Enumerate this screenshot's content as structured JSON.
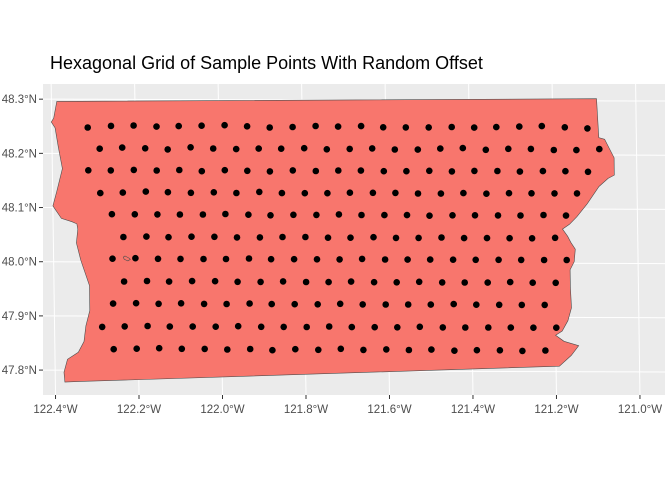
{
  "chart_data": {
    "type": "scatter",
    "title": "Hexagonal Grid of Sample Points With Random Offset",
    "xlabel": "",
    "ylabel": "",
    "x_ticks": [
      {
        "value": -122.4,
        "label": "122.4°W"
      },
      {
        "value": -122.2,
        "label": "122.2°W"
      },
      {
        "value": -122.0,
        "label": "122.0°W"
      },
      {
        "value": -121.8,
        "label": "121.8°W"
      },
      {
        "value": -121.6,
        "label": "121.6°W"
      },
      {
        "value": -121.4,
        "label": "121.4°W"
      },
      {
        "value": -121.2,
        "label": "121.2°W"
      },
      {
        "value": -121.0,
        "label": "121.0°W"
      }
    ],
    "y_ticks": [
      {
        "value": 47.8,
        "label": "47.8°N"
      },
      {
        "value": 47.9,
        "label": "47.9°N"
      },
      {
        "value": 48.0,
        "label": "48.0°N"
      },
      {
        "value": 48.1,
        "label": "48.1°N"
      },
      {
        "value": 48.2,
        "label": "48.2°N"
      },
      {
        "value": 48.3,
        "label": "48.3°N"
      }
    ],
    "xlim": [
      -122.43,
      -120.94
    ],
    "ylim": [
      47.754,
      48.328
    ],
    "grid": true,
    "legend": "none",
    "region_fill": "#F8766D",
    "region_stroke": "#4d4d4d",
    "panel_background": "#EBEBEB",
    "grid_color": "#ffffff",
    "point_color": "#000000",
    "region_outline": [
      [
        -122.387,
        48.296
      ],
      [
        -121.094,
        48.304
      ],
      [
        -121.09,
        48.232
      ],
      [
        -121.076,
        48.229
      ],
      [
        -121.054,
        48.195
      ],
      [
        -121.054,
        48.163
      ],
      [
        -121.069,
        48.157
      ],
      [
        -121.091,
        48.142
      ],
      [
        -121.12,
        48.11
      ],
      [
        -121.145,
        48.086
      ],
      [
        -121.163,
        48.072
      ],
      [
        -121.18,
        48.063
      ],
      [
        -121.168,
        48.05
      ],
      [
        -121.16,
        48.038
      ],
      [
        -121.15,
        48.026
      ],
      [
        -121.153,
        48.003
      ],
      [
        -121.163,
        47.988
      ],
      [
        -121.163,
        47.955
      ],
      [
        -121.161,
        47.918
      ],
      [
        -121.17,
        47.894
      ],
      [
        -121.184,
        47.875
      ],
      [
        -121.2,
        47.867
      ],
      [
        -121.18,
        47.856
      ],
      [
        -121.145,
        47.848
      ],
      [
        -121.163,
        47.83
      ],
      [
        -121.192,
        47.81
      ],
      [
        -122.349,
        47.779
      ],
      [
        -122.377,
        47.778
      ],
      [
        -122.379,
        47.796
      ],
      [
        -122.37,
        47.82
      ],
      [
        -122.344,
        47.833
      ],
      [
        -122.33,
        47.853
      ],
      [
        -122.325,
        47.882
      ],
      [
        -122.315,
        47.91
      ],
      [
        -122.315,
        47.956
      ],
      [
        -122.335,
        48.003
      ],
      [
        -122.345,
        48.035
      ],
      [
        -122.341,
        48.06
      ],
      [
        -122.343,
        48.07
      ],
      [
        -122.355,
        48.074
      ],
      [
        -122.38,
        48.08
      ],
      [
        -122.4,
        48.103
      ],
      [
        -122.39,
        48.13
      ],
      [
        -122.376,
        48.172
      ],
      [
        -122.385,
        48.212
      ],
      [
        -122.392,
        48.247
      ],
      [
        -122.401,
        48.258
      ],
      [
        -122.395,
        48.265
      ],
      [
        -122.387,
        48.296
      ]
    ],
    "islet_outline": [
      [
        -122.229,
        48.011
      ],
      [
        -122.219,
        48.007
      ],
      [
        -122.216,
        48.005
      ],
      [
        -122.222,
        48.002
      ],
      [
        -122.231,
        48.005
      ],
      [
        -122.233,
        48.009
      ],
      [
        -122.229,
        48.011
      ]
    ],
    "points": [
      {
        "x": -122.314,
        "y": 48.248
      },
      {
        "x": -122.258,
        "y": 48.251
      },
      {
        "x": -122.204,
        "y": 48.252
      },
      {
        "x": -122.149,
        "y": 48.25
      },
      {
        "x": -122.096,
        "y": 48.251
      },
      {
        "x": -122.041,
        "y": 48.252
      },
      {
        "x": -121.986,
        "y": 48.253
      },
      {
        "x": -121.932,
        "y": 48.251
      },
      {
        "x": -121.878,
        "y": 48.249
      },
      {
        "x": -121.823,
        "y": 48.25
      },
      {
        "x": -121.768,
        "y": 48.252
      },
      {
        "x": -121.714,
        "y": 48.251
      },
      {
        "x": -121.659,
        "y": 48.252
      },
      {
        "x": -121.606,
        "y": 48.25
      },
      {
        "x": -121.552,
        "y": 48.25
      },
      {
        "x": -121.497,
        "y": 48.25
      },
      {
        "x": -121.442,
        "y": 48.251
      },
      {
        "x": -121.388,
        "y": 48.25
      },
      {
        "x": -121.335,
        "y": 48.251
      },
      {
        "x": -121.28,
        "y": 48.252
      },
      {
        "x": -121.226,
        "y": 48.253
      },
      {
        "x": -121.171,
        "y": 48.251
      },
      {
        "x": -121.117,
        "y": 48.249
      },
      {
        "x": -122.286,
        "y": 48.209
      },
      {
        "x": -122.232,
        "y": 48.211
      },
      {
        "x": -122.177,
        "y": 48.21
      },
      {
        "x": -122.123,
        "y": 48.208
      },
      {
        "x": -122.068,
        "y": 48.212
      },
      {
        "x": -122.014,
        "y": 48.21
      },
      {
        "x": -121.959,
        "y": 48.209
      },
      {
        "x": -121.905,
        "y": 48.21
      },
      {
        "x": -121.851,
        "y": 48.21
      },
      {
        "x": -121.796,
        "y": 48.211
      },
      {
        "x": -121.742,
        "y": 48.209
      },
      {
        "x": -121.687,
        "y": 48.21
      },
      {
        "x": -121.633,
        "y": 48.211
      },
      {
        "x": -121.579,
        "y": 48.209
      },
      {
        "x": -121.524,
        "y": 48.209
      },
      {
        "x": -121.47,
        "y": 48.211
      },
      {
        "x": -121.416,
        "y": 48.212
      },
      {
        "x": -121.361,
        "y": 48.209
      },
      {
        "x": -121.307,
        "y": 48.211
      },
      {
        "x": -121.253,
        "y": 48.211
      },
      {
        "x": -121.198,
        "y": 48.209
      },
      {
        "x": -121.144,
        "y": 48.209
      },
      {
        "x": -121.089,
        "y": 48.211
      },
      {
        "x": -122.314,
        "y": 48.169
      },
      {
        "x": -122.26,
        "y": 48.169
      },
      {
        "x": -122.205,
        "y": 48.17
      },
      {
        "x": -122.15,
        "y": 48.169
      },
      {
        "x": -122.096,
        "y": 48.17
      },
      {
        "x": -122.042,
        "y": 48.168
      },
      {
        "x": -121.987,
        "y": 48.17
      },
      {
        "x": -121.933,
        "y": 48.169
      },
      {
        "x": -121.879,
        "y": 48.168
      },
      {
        "x": -121.824,
        "y": 48.17
      },
      {
        "x": -121.769,
        "y": 48.169
      },
      {
        "x": -121.715,
        "y": 48.17
      },
      {
        "x": -121.661,
        "y": 48.17
      },
      {
        "x": -121.606,
        "y": 48.169
      },
      {
        "x": -121.552,
        "y": 48.169
      },
      {
        "x": -121.497,
        "y": 48.17
      },
      {
        "x": -121.443,
        "y": 48.169
      },
      {
        "x": -121.389,
        "y": 48.17
      },
      {
        "x": -121.334,
        "y": 48.17
      },
      {
        "x": -121.28,
        "y": 48.169
      },
      {
        "x": -121.225,
        "y": 48.17
      },
      {
        "x": -121.171,
        "y": 48.17
      },
      {
        "x": -121.117,
        "y": 48.169
      },
      {
        "x": -122.286,
        "y": 48.127
      },
      {
        "x": -122.232,
        "y": 48.128
      },
      {
        "x": -122.177,
        "y": 48.13
      },
      {
        "x": -122.124,
        "y": 48.129
      },
      {
        "x": -122.069,
        "y": 48.128
      },
      {
        "x": -122.014,
        "y": 48.129
      },
      {
        "x": -121.96,
        "y": 48.128
      },
      {
        "x": -121.905,
        "y": 48.13
      },
      {
        "x": -121.851,
        "y": 48.128
      },
      {
        "x": -121.796,
        "y": 48.128
      },
      {
        "x": -121.742,
        "y": 48.128
      },
      {
        "x": -121.688,
        "y": 48.129
      },
      {
        "x": -121.633,
        "y": 48.129
      },
      {
        "x": -121.579,
        "y": 48.129
      },
      {
        "x": -121.525,
        "y": 48.128
      },
      {
        "x": -121.47,
        "y": 48.128
      },
      {
        "x": -121.416,
        "y": 48.129
      },
      {
        "x": -121.361,
        "y": 48.128
      },
      {
        "x": -121.307,
        "y": 48.129
      },
      {
        "x": -121.253,
        "y": 48.129
      },
      {
        "x": -121.198,
        "y": 48.129
      },
      {
        "x": -121.144,
        "y": 48.129
      },
      {
        "x": -122.259,
        "y": 48.088
      },
      {
        "x": -122.204,
        "y": 48.088
      },
      {
        "x": -122.15,
        "y": 48.088
      },
      {
        "x": -122.096,
        "y": 48.088
      },
      {
        "x": -122.041,
        "y": 48.088
      },
      {
        "x": -121.987,
        "y": 48.089
      },
      {
        "x": -121.932,
        "y": 48.088
      },
      {
        "x": -121.879,
        "y": 48.087
      },
      {
        "x": -121.824,
        "y": 48.088
      },
      {
        "x": -121.769,
        "y": 48.088
      },
      {
        "x": -121.715,
        "y": 48.089
      },
      {
        "x": -121.661,
        "y": 48.088
      },
      {
        "x": -121.606,
        "y": 48.088
      },
      {
        "x": -121.552,
        "y": 48.088
      },
      {
        "x": -121.498,
        "y": 48.087
      },
      {
        "x": -121.443,
        "y": 48.088
      },
      {
        "x": -121.389,
        "y": 48.088
      },
      {
        "x": -121.334,
        "y": 48.088
      },
      {
        "x": -121.28,
        "y": 48.088
      },
      {
        "x": -121.225,
        "y": 48.089
      },
      {
        "x": -121.171,
        "y": 48.088
      },
      {
        "x": -122.232,
        "y": 48.046
      },
      {
        "x": -122.177,
        "y": 48.047
      },
      {
        "x": -122.124,
        "y": 48.046
      },
      {
        "x": -122.069,
        "y": 48.047
      },
      {
        "x": -122.014,
        "y": 48.047
      },
      {
        "x": -121.96,
        "y": 48.046
      },
      {
        "x": -121.905,
        "y": 48.046
      },
      {
        "x": -121.851,
        "y": 48.047
      },
      {
        "x": -121.796,
        "y": 48.047
      },
      {
        "x": -121.742,
        "y": 48.046
      },
      {
        "x": -121.688,
        "y": 48.046
      },
      {
        "x": -121.633,
        "y": 48.047
      },
      {
        "x": -121.579,
        "y": 48.046
      },
      {
        "x": -121.525,
        "y": 48.046
      },
      {
        "x": -121.47,
        "y": 48.047
      },
      {
        "x": -121.416,
        "y": 48.046
      },
      {
        "x": -121.361,
        "y": 48.046
      },
      {
        "x": -121.307,
        "y": 48.046
      },
      {
        "x": -121.253,
        "y": 48.046
      },
      {
        "x": -121.198,
        "y": 48.047
      },
      {
        "x": -122.259,
        "y": 48.006
      },
      {
        "x": -122.204,
        "y": 48.007
      },
      {
        "x": -122.15,
        "y": 48.006
      },
      {
        "x": -122.096,
        "y": 48.006
      },
      {
        "x": -122.041,
        "y": 48.006
      },
      {
        "x": -121.987,
        "y": 48.006
      },
      {
        "x": -121.932,
        "y": 48.007
      },
      {
        "x": -121.879,
        "y": 48.006
      },
      {
        "x": -121.824,
        "y": 48.006
      },
      {
        "x": -121.769,
        "y": 48.006
      },
      {
        "x": -121.715,
        "y": 48.006
      },
      {
        "x": -121.661,
        "y": 48.007
      },
      {
        "x": -121.606,
        "y": 48.006
      },
      {
        "x": -121.552,
        "y": 48.006
      },
      {
        "x": -121.498,
        "y": 48.006
      },
      {
        "x": -121.443,
        "y": 48.006
      },
      {
        "x": -121.389,
        "y": 48.006
      },
      {
        "x": -121.334,
        "y": 48.006
      },
      {
        "x": -121.28,
        "y": 48.006
      },
      {
        "x": -121.225,
        "y": 48.006
      },
      {
        "x": -121.171,
        "y": 48.006
      },
      {
        "x": -122.232,
        "y": 47.964
      },
      {
        "x": -122.177,
        "y": 47.965
      },
      {
        "x": -122.124,
        "y": 47.964
      },
      {
        "x": -122.069,
        "y": 47.965
      },
      {
        "x": -122.014,
        "y": 47.965
      },
      {
        "x": -121.96,
        "y": 47.964
      },
      {
        "x": -121.905,
        "y": 47.964
      },
      {
        "x": -121.851,
        "y": 47.965
      },
      {
        "x": -121.796,
        "y": 47.964
      },
      {
        "x": -121.742,
        "y": 47.964
      },
      {
        "x": -121.688,
        "y": 47.965
      },
      {
        "x": -121.633,
        "y": 47.964
      },
      {
        "x": -121.579,
        "y": 47.964
      },
      {
        "x": -121.525,
        "y": 47.965
      },
      {
        "x": -121.47,
        "y": 47.964
      },
      {
        "x": -121.416,
        "y": 47.964
      },
      {
        "x": -121.361,
        "y": 47.964
      },
      {
        "x": -121.307,
        "y": 47.965
      },
      {
        "x": -121.253,
        "y": 47.964
      },
      {
        "x": -121.198,
        "y": 47.964
      },
      {
        "x": -122.259,
        "y": 47.923
      },
      {
        "x": -122.204,
        "y": 47.924
      },
      {
        "x": -122.15,
        "y": 47.923
      },
      {
        "x": -122.096,
        "y": 47.924
      },
      {
        "x": -122.041,
        "y": 47.923
      },
      {
        "x": -121.987,
        "y": 47.923
      },
      {
        "x": -121.932,
        "y": 47.924
      },
      {
        "x": -121.879,
        "y": 47.923
      },
      {
        "x": -121.824,
        "y": 47.923
      },
      {
        "x": -121.769,
        "y": 47.923
      },
      {
        "x": -121.715,
        "y": 47.924
      },
      {
        "x": -121.661,
        "y": 47.923
      },
      {
        "x": -121.606,
        "y": 47.923
      },
      {
        "x": -121.552,
        "y": 47.923
      },
      {
        "x": -121.498,
        "y": 47.923
      },
      {
        "x": -121.443,
        "y": 47.924
      },
      {
        "x": -121.389,
        "y": 47.923
      },
      {
        "x": -121.334,
        "y": 47.923
      },
      {
        "x": -121.28,
        "y": 47.923
      },
      {
        "x": -121.225,
        "y": 47.923
      },
      {
        "x": -122.286,
        "y": 47.88
      },
      {
        "x": -122.232,
        "y": 47.881
      },
      {
        "x": -122.177,
        "y": 47.882
      },
      {
        "x": -122.124,
        "y": 47.881
      },
      {
        "x": -122.069,
        "y": 47.881
      },
      {
        "x": -122.014,
        "y": 47.881
      },
      {
        "x": -121.96,
        "y": 47.882
      },
      {
        "x": -121.905,
        "y": 47.881
      },
      {
        "x": -121.851,
        "y": 47.881
      },
      {
        "x": -121.796,
        "y": 47.881
      },
      {
        "x": -121.742,
        "y": 47.882
      },
      {
        "x": -121.688,
        "y": 47.881
      },
      {
        "x": -121.633,
        "y": 47.881
      },
      {
        "x": -121.579,
        "y": 47.881
      },
      {
        "x": -121.525,
        "y": 47.882
      },
      {
        "x": -121.47,
        "y": 47.881
      },
      {
        "x": -121.416,
        "y": 47.881
      },
      {
        "x": -121.361,
        "y": 47.881
      },
      {
        "x": -121.307,
        "y": 47.881
      },
      {
        "x": -121.253,
        "y": 47.881
      },
      {
        "x": -121.198,
        "y": 47.881
      },
      {
        "x": -122.259,
        "y": 47.839
      },
      {
        "x": -122.204,
        "y": 47.84
      },
      {
        "x": -122.15,
        "y": 47.841
      },
      {
        "x": -122.096,
        "y": 47.84
      },
      {
        "x": -122.041,
        "y": 47.84
      },
      {
        "x": -121.987,
        "y": 47.839
      },
      {
        "x": -121.932,
        "y": 47.84
      },
      {
        "x": -121.879,
        "y": 47.838
      },
      {
        "x": -121.824,
        "y": 47.84
      },
      {
        "x": -121.769,
        "y": 47.839
      },
      {
        "x": -121.715,
        "y": 47.841
      },
      {
        "x": -121.661,
        "y": 47.839
      },
      {
        "x": -121.606,
        "y": 47.84
      },
      {
        "x": -121.552,
        "y": 47.839
      },
      {
        "x": -121.498,
        "y": 47.84
      },
      {
        "x": -121.443,
        "y": 47.838
      },
      {
        "x": -121.389,
        "y": 47.839
      },
      {
        "x": -121.334,
        "y": 47.839
      },
      {
        "x": -121.28,
        "y": 47.838
      },
      {
        "x": -121.225,
        "y": 47.839
      }
    ]
  }
}
